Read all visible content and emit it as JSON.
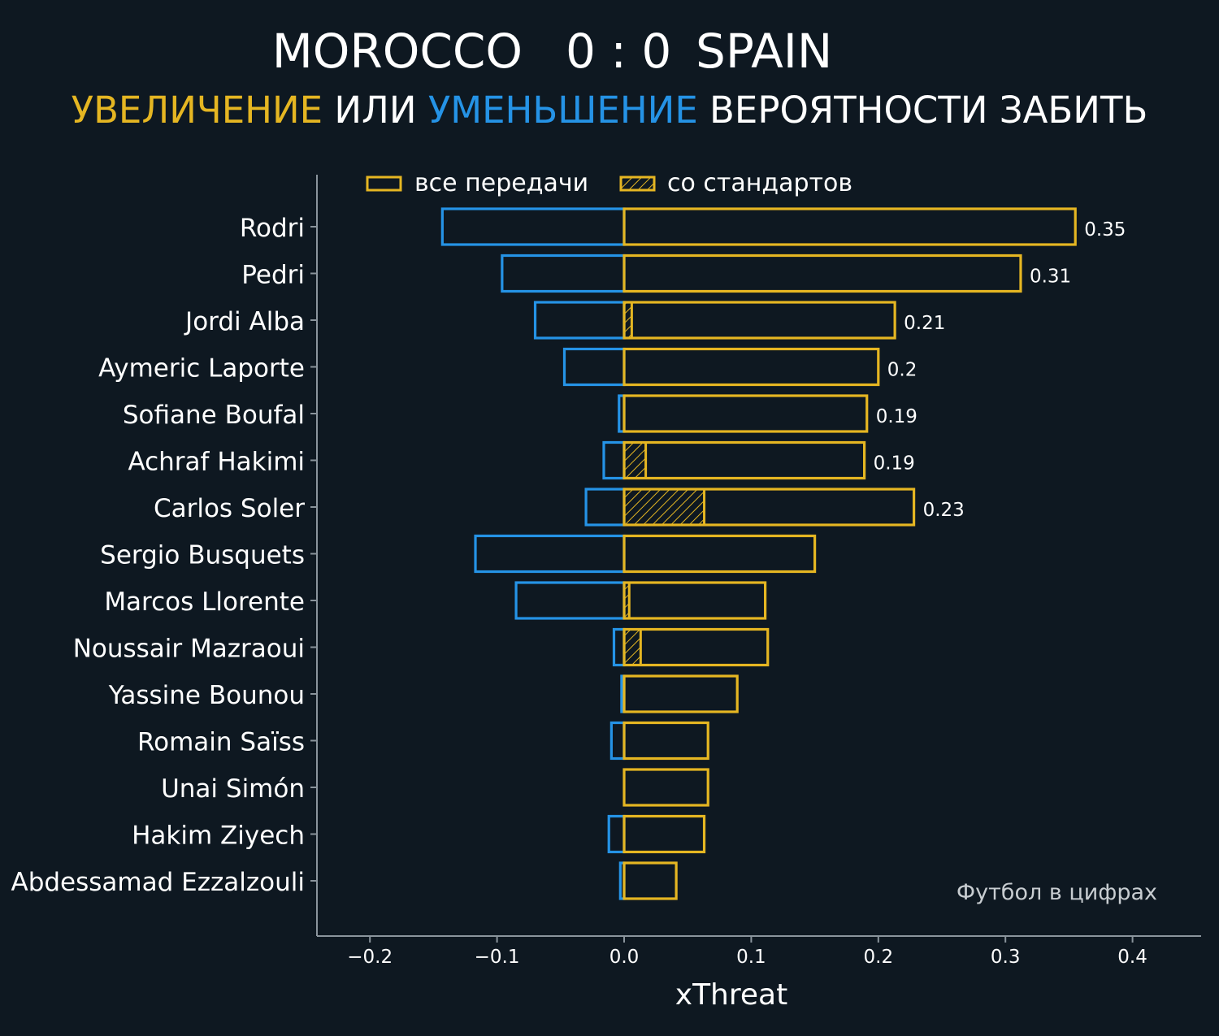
{
  "header": {
    "home_team": "MOROCCO",
    "score": "0 : 0",
    "away_team": "SPAIN",
    "subtitle": {
      "increase": "УВЕЛИЧЕНИЕ",
      "or": " ИЛИ ",
      "decrease": "УМЕНЬШЕНИЕ",
      "rest": " ВЕРОЯТНОСТИ ЗАБИТЬ"
    }
  },
  "colors": {
    "background": "#0e1821",
    "positive": "#e5b622",
    "negative": "#2593e6",
    "axis": "#8a949c",
    "text": "#ffffff",
    "watermark": "#c8cdd1"
  },
  "chart_data": {
    "type": "bar",
    "orientation": "horizontal",
    "xlabel": "xThreat",
    "xlim": [
      -0.245,
      0.45
    ],
    "xticks": [
      -0.2,
      -0.1,
      0.0,
      0.1,
      0.2,
      0.3,
      0.4
    ],
    "xtick_labels": [
      "−0.2",
      "−0.1",
      "0.0",
      "0.1",
      "0.2",
      "0.3",
      "0.4"
    ],
    "grid": false,
    "legend": {
      "placement": "top",
      "entries": [
        {
          "label": "все передачи",
          "style": "outline"
        },
        {
          "label": "со стандартов",
          "style": "hatched"
        }
      ]
    },
    "watermark": "Футбол в цифрах",
    "categories": [
      "Rodri",
      "Pedri",
      "Jordi Alba",
      "Aymeric Laporte",
      "Sofiane Boufal",
      "Achraf Hakimi",
      "Carlos Soler",
      "Sergio Busquets",
      "Marcos Llorente",
      "Noussair Mazraoui",
      "Yassine Bounou",
      "Romain Saïss",
      "Unai Simón",
      "Hakim Ziyech",
      "Abdessamad Ezzalzouli"
    ],
    "series": [
      {
        "role": "increase (all passes)",
        "color": "#e5b622",
        "values": [
          0.355,
          0.312,
          0.213,
          0.2,
          0.191,
          0.189,
          0.228,
          0.15,
          0.111,
          0.113,
          0.089,
          0.066,
          0.066,
          0.063,
          0.041
        ]
      },
      {
        "role": "decrease (all passes)",
        "color": "#2593e6",
        "values": [
          -0.143,
          -0.096,
          -0.07,
          -0.047,
          -0.004,
          -0.016,
          -0.03,
          -0.117,
          -0.085,
          -0.008,
          -0.002,
          -0.01,
          0,
          -0.012,
          -0.003
        ]
      },
      {
        "role": "increase (set pieces)",
        "color": "#e5b622",
        "hatched": true,
        "values": [
          0,
          0,
          0.006,
          0,
          0,
          0.017,
          0.063,
          0,
          0.004,
          0.013,
          0,
          0,
          0,
          0,
          0
        ]
      }
    ],
    "bar_labels": [
      "0.35",
      "0.31",
      "0.21",
      "0.2",
      "0.19",
      "0.19",
      "0.23",
      "",
      "",
      "",
      "",
      "",
      "",
      "",
      ""
    ]
  }
}
